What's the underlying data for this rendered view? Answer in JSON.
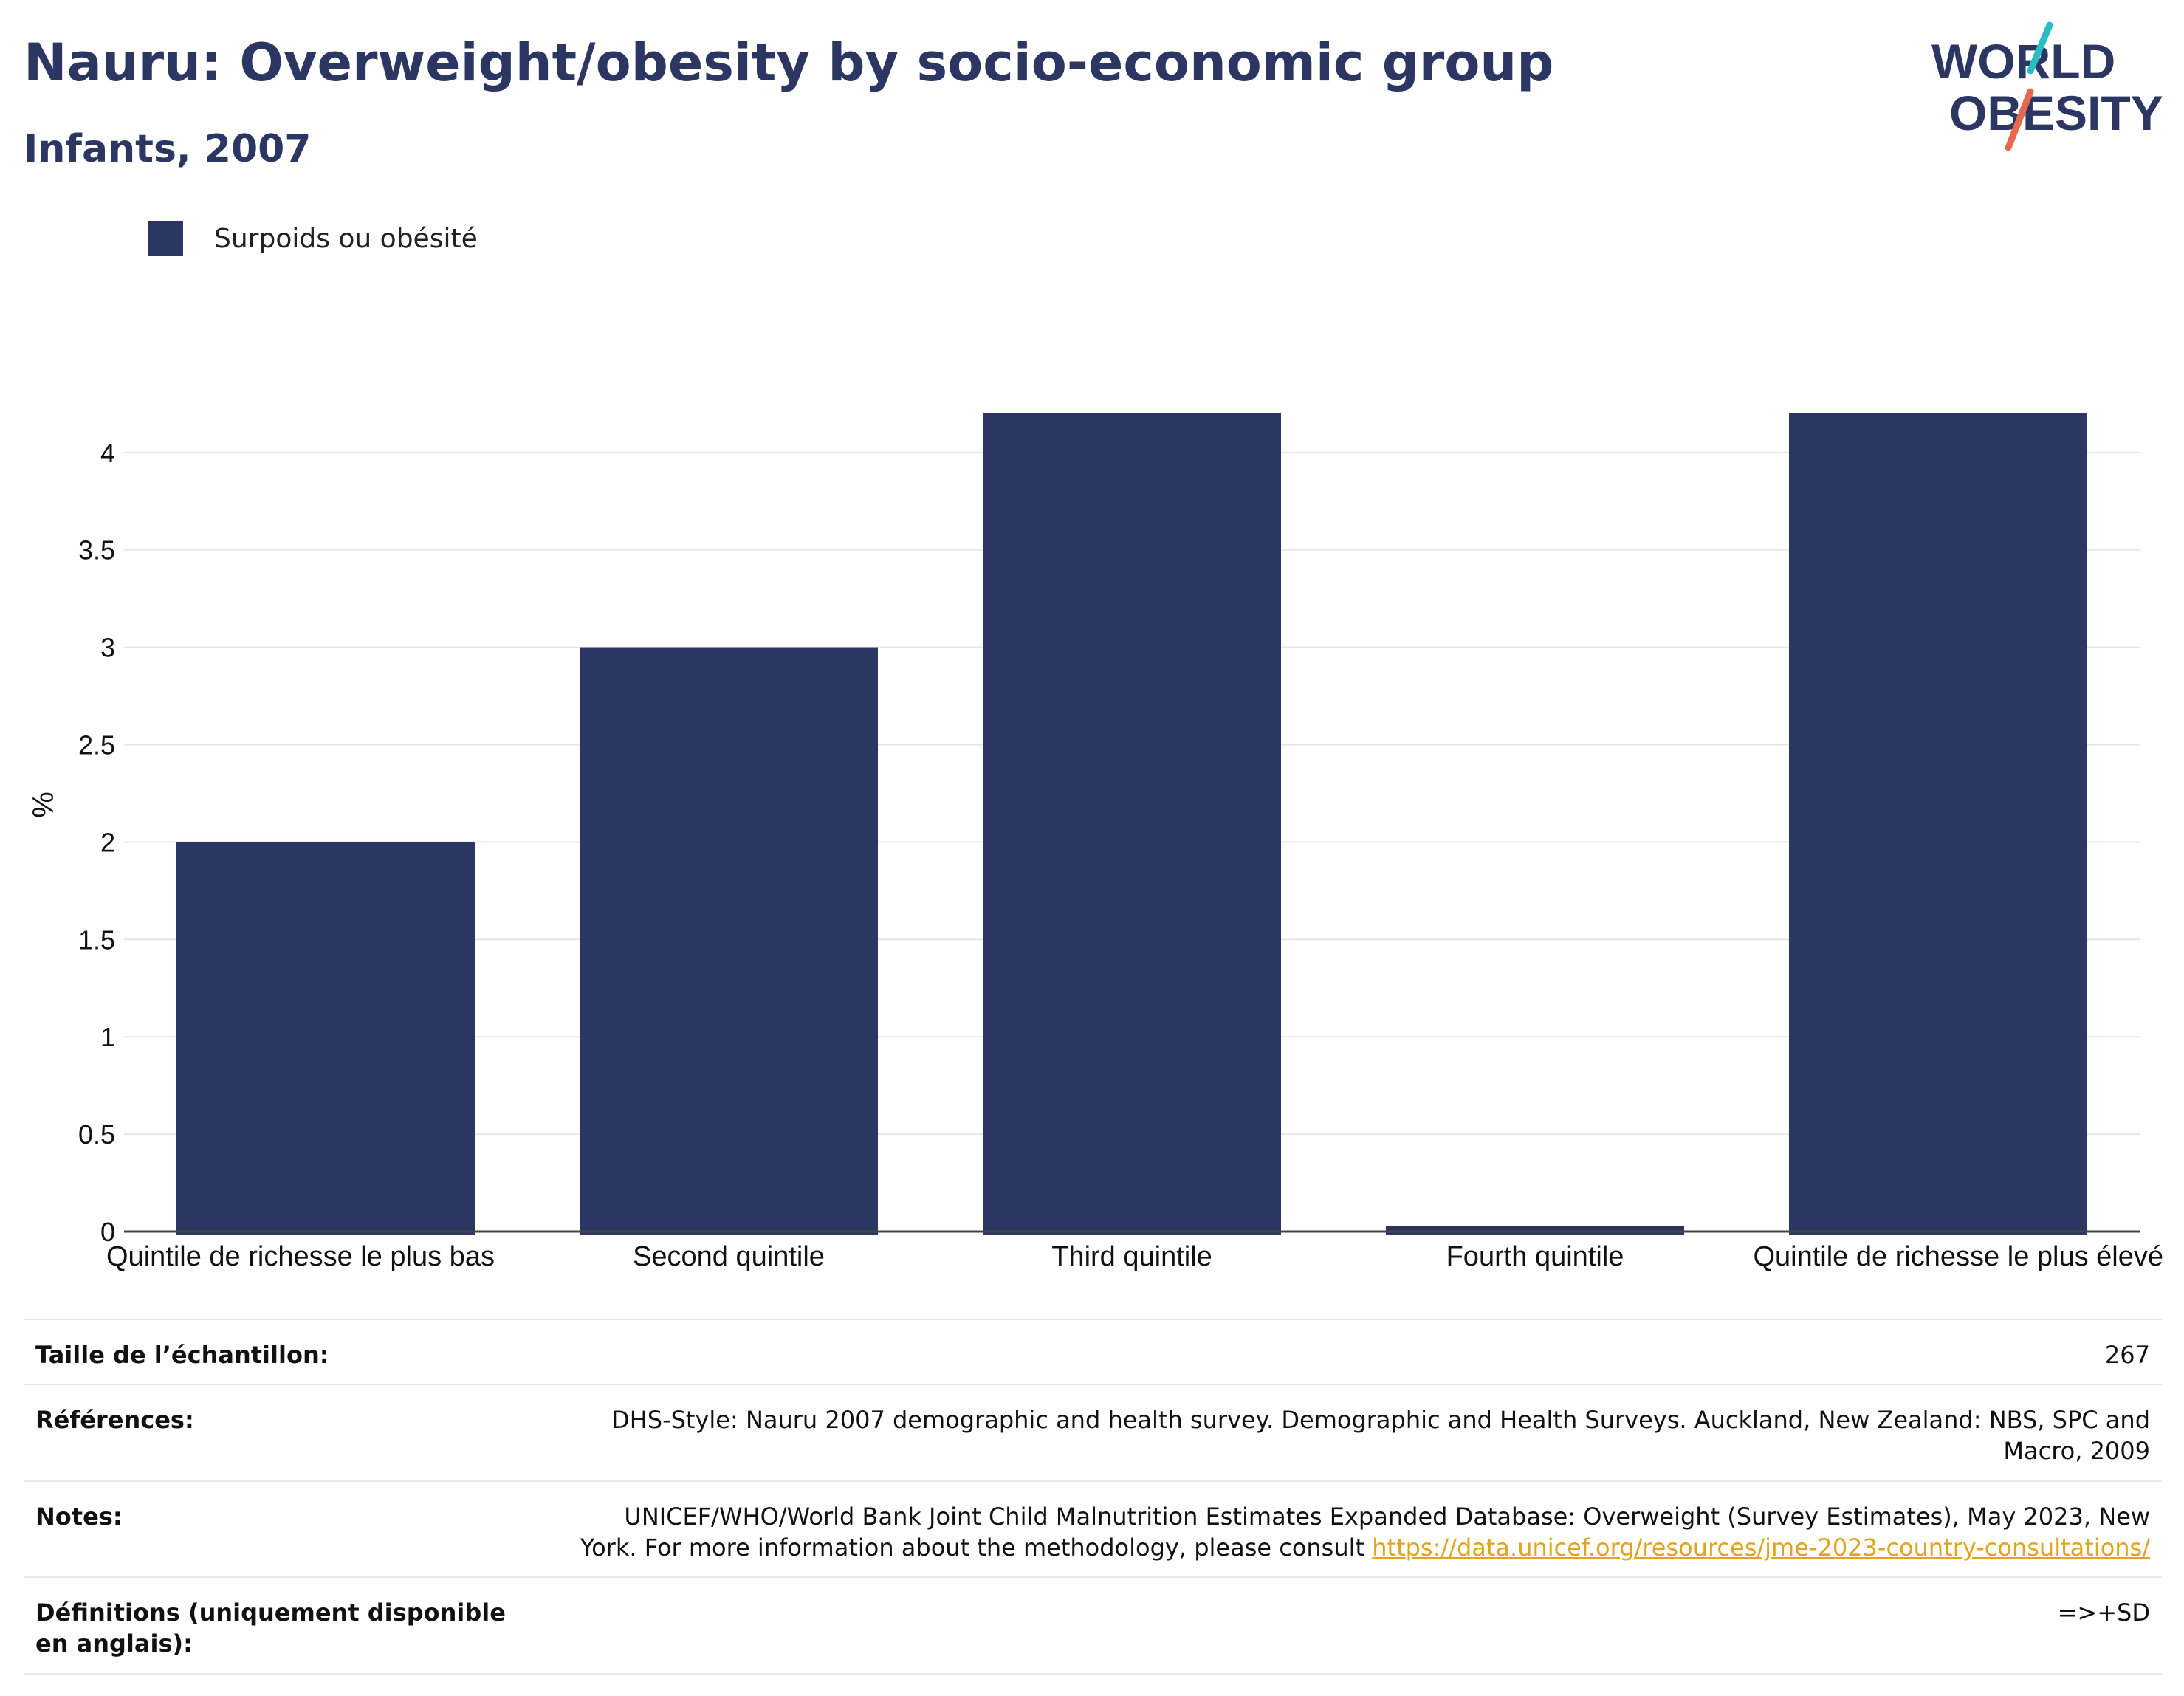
{
  "header": {
    "title": "Nauru: Overweight/obesity by socio-economic group",
    "subtitle": "Infants, 2007"
  },
  "logo": {
    "line1": "WORLD",
    "line2": "OBESITY"
  },
  "colors": {
    "bar": "#2b3663",
    "title": "#2b3663",
    "link": "#e0a51c",
    "grid": "#e6e6e6",
    "logo_teal": "#2bbbc4",
    "logo_red": "#e8674f"
  },
  "legend": {
    "label": "Surpoids ou obésité"
  },
  "chart_data": {
    "type": "bar",
    "categories": [
      "Quintile de richesse le plus bas",
      "Second quintile",
      "Third quintile",
      "Fourth quintile",
      "Quintile de richesse le plus élevé"
    ],
    "series": [
      {
        "name": "Surpoids ou obésité",
        "values": [
          2.0,
          3.0,
          4.2,
          0.0,
          4.2
        ]
      }
    ],
    "ylabel": "%",
    "ylim": [
      0,
      4.2
    ],
    "yticks": [
      0,
      0.5,
      1,
      1.5,
      2,
      2.5,
      3,
      3.5,
      4
    ],
    "ytick_labels": [
      "0",
      "0.5",
      "1",
      "1.5",
      "2",
      "2.5",
      "3",
      "3.5",
      "4"
    ],
    "grid": true,
    "legend_position": "top-left"
  },
  "info": {
    "sample_label": "Taille de l’échantillon:",
    "sample_value": "267",
    "refs_label": "Références:",
    "refs_value": "DHS-Style: Nauru 2007 demographic and health survey. Demographic and Health Surveys. Auckland, New Zealand: NBS, SPC and Macro, 2009",
    "notes_label": "Notes:",
    "notes_text": "UNICEF/WHO/World Bank Joint Child Malnutrition Estimates Expanded Database: Overweight (Survey Estimates), May 2023, New York. For more information about the methodology, please consult ",
    "notes_link": "https://data.unicef.org/resources/jme-2023-country-consultations/",
    "defs_label": "Définitions (uniquement disponible en anglais):",
    "defs_value": "=>+SD"
  }
}
